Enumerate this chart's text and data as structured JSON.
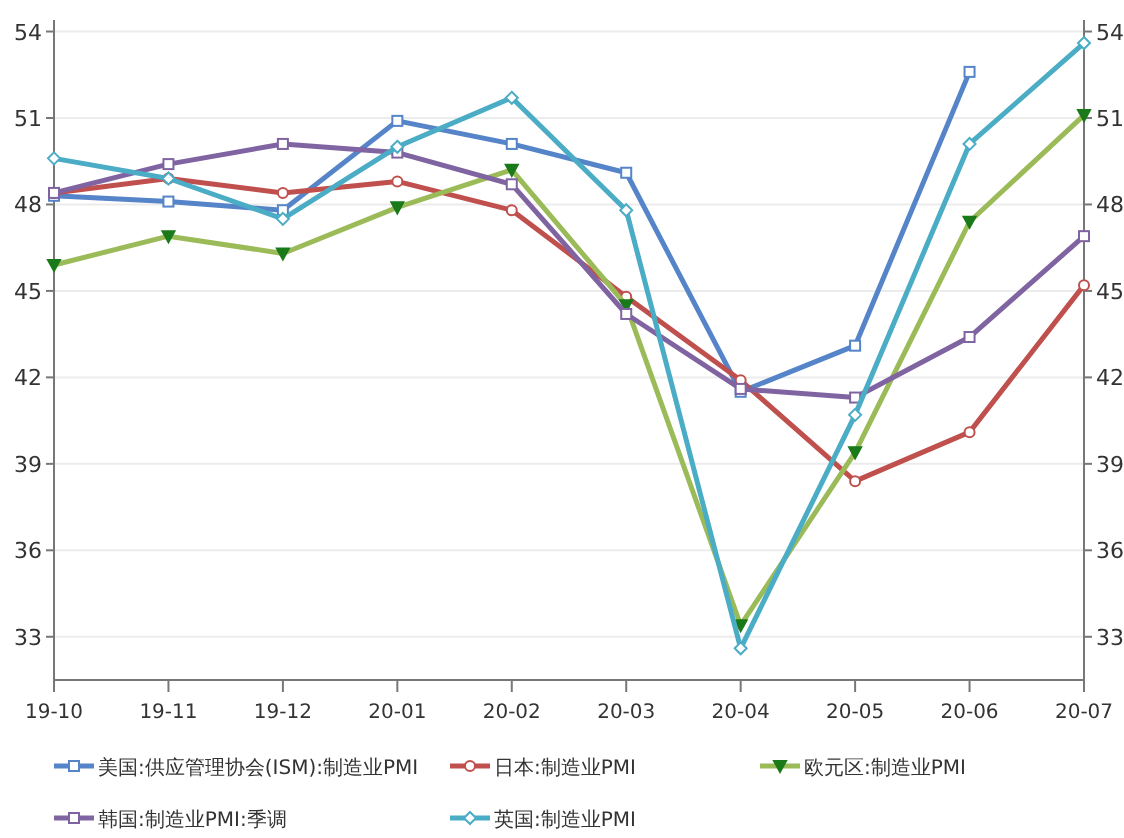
{
  "chart_data": {
    "type": "line",
    "categories": [
      "19-10",
      "19-11",
      "19-12",
      "20-01",
      "20-02",
      "20-03",
      "20-04",
      "20-05",
      "20-06",
      "20-07"
    ],
    "ylim": [
      31.5,
      54.4
    ],
    "yticks": [
      33,
      36,
      39,
      42,
      45,
      48,
      51,
      54
    ],
    "y2lim": [
      31.5,
      54.4
    ],
    "y2ticks": [
      33,
      36,
      39,
      42,
      45,
      48,
      51,
      54
    ],
    "grid": "y",
    "legend": "bottom",
    "line_style": "solid",
    "series": [
      {
        "name": "美国:供应管理协会(ISM):制造业PMI",
        "color": "#5585c8",
        "marker": "square",
        "values": [
          48.3,
          48.1,
          47.8,
          50.9,
          50.1,
          49.1,
          41.5,
          43.1,
          52.6,
          null
        ]
      },
      {
        "name": "日本:制造业PMI",
        "color": "#c0504d",
        "marker": "circle",
        "values": [
          48.4,
          48.9,
          48.4,
          48.8,
          47.8,
          44.8,
          41.9,
          38.4,
          40.1,
          45.2
        ]
      },
      {
        "name": "欧元区:制造业PMI",
        "color": "#9bbb59",
        "marker": "triangle",
        "values": [
          45.9,
          46.9,
          46.3,
          47.9,
          49.2,
          44.5,
          33.4,
          39.4,
          47.4,
          51.1
        ]
      },
      {
        "name": "韩国:制造业PMI:季调",
        "color": "#8064a2",
        "marker": "square",
        "values": [
          48.4,
          49.4,
          50.1,
          49.8,
          48.7,
          44.2,
          41.6,
          41.3,
          43.4,
          46.9
        ]
      },
      {
        "name": "英国:制造业PMI",
        "color": "#4bacc6",
        "marker": "diamond",
        "values": [
          49.6,
          48.9,
          47.5,
          50.0,
          51.7,
          47.8,
          32.6,
          40.7,
          50.1,
          53.6
        ]
      }
    ]
  }
}
